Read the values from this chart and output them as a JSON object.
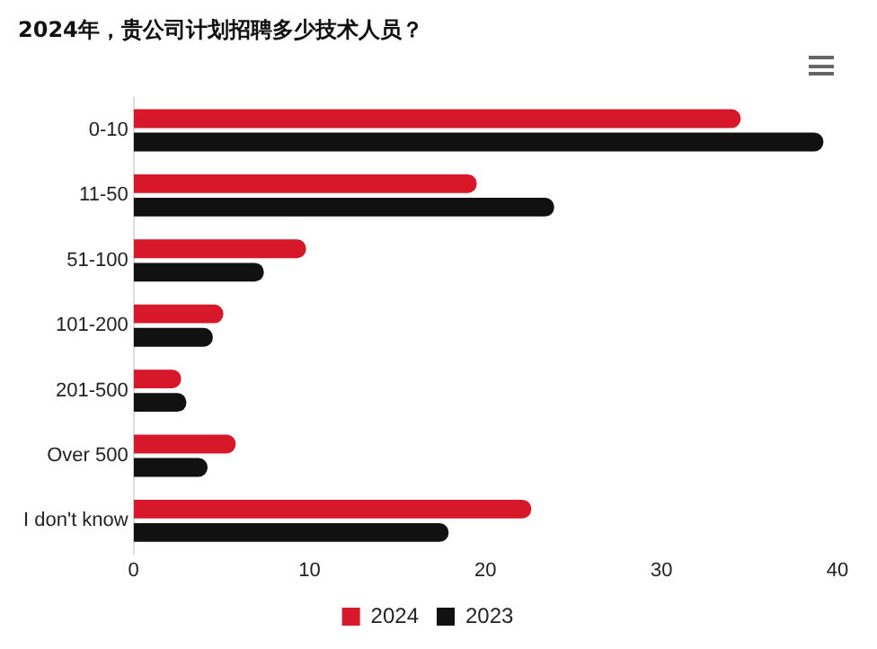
{
  "chart_data": {
    "type": "bar",
    "orientation": "horizontal",
    "title": "2024年，贵公司计划招聘多少技术人员？",
    "categories": [
      "0-10",
      "11-50",
      "51-100",
      "101-200",
      "201-500",
      "Over 500",
      "I don't know"
    ],
    "series": [
      {
        "name": "2024",
        "color": "#d7182a",
        "values": [
          34.5,
          19.5,
          9.8,
          5.1,
          2.7,
          5.8,
          22.6
        ]
      },
      {
        "name": "2023",
        "color": "#111111",
        "values": [
          39.2,
          23.9,
          7.4,
          4.5,
          3.0,
          4.2,
          17.9
        ]
      }
    ],
    "xlim": [
      0,
      40
    ],
    "xticks": [
      0,
      10,
      20,
      30,
      40
    ],
    "grid": false,
    "legend": "bottom"
  }
}
